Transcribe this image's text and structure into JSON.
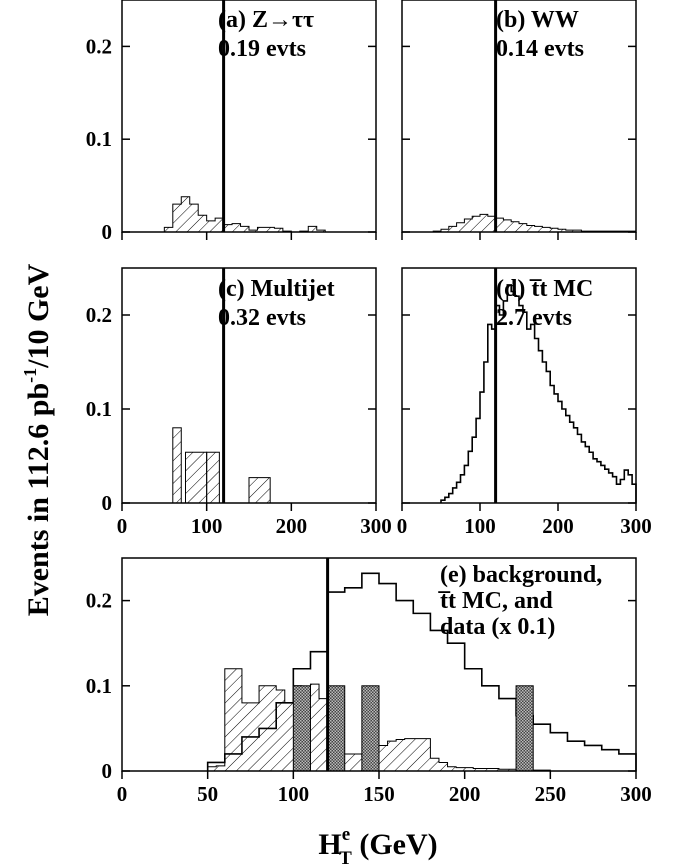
{
  "figure": {
    "ylabel_main": "Events in 112.6 pb",
    "ylabel_exp": "-1",
    "ylabel_tail": "/10 GeV",
    "xlabel_main": "H",
    "xlabel_sup": "e",
    "xlabel_sub": "T",
    "xlabel_tail": " (GeV)",
    "colors": {
      "frame": "#000000",
      "hatch": "#000000",
      "data_fill": "#555555",
      "background": "#ffffff"
    }
  },
  "chart_data": [
    {
      "id": "a",
      "type": "histogram",
      "label_lines": [
        "(a) Z→ττ",
        "0.19 evts"
      ],
      "xlim": [
        0,
        300
      ],
      "ylim": [
        0,
        0.25
      ],
      "yticks": [
        "0",
        "0.1",
        "0.2"
      ],
      "xticks": [],
      "cut_line_x": 120,
      "series": [
        {
          "name": "Z→ττ",
          "style": "hatched",
          "edges": [
            40,
            50,
            60,
            70,
            80,
            90,
            100,
            110,
            120,
            130,
            140,
            150,
            160,
            170,
            180,
            190,
            200,
            210,
            220,
            230,
            240,
            250,
            260,
            270,
            280,
            290,
            300
          ],
          "values": [
            0,
            0.005,
            0.03,
            0.038,
            0.03,
            0.018,
            0.012,
            0.015,
            0.008,
            0.009,
            0.006,
            0.002,
            0.005,
            0.005,
            0.004,
            0.001,
            0,
            0.001,
            0.006,
            0.002,
            0,
            0,
            0,
            0,
            0,
            0
          ]
        }
      ]
    },
    {
      "id": "b",
      "type": "histogram",
      "label_lines": [
        "(b) WW",
        "0.14 evts"
      ],
      "xlim": [
        0,
        300
      ],
      "ylim": [
        0,
        0.25
      ],
      "yticks": [
        "0",
        "0.1",
        "0.2"
      ],
      "xticks": [],
      "cut_line_x": 120,
      "series": [
        {
          "name": "WW",
          "style": "hatched",
          "edges": [
            40,
            50,
            60,
            70,
            80,
            90,
            100,
            110,
            120,
            130,
            140,
            150,
            160,
            170,
            180,
            190,
            200,
            210,
            220,
            230,
            240,
            250,
            260,
            270,
            280,
            290,
            300
          ],
          "values": [
            0.001,
            0.003,
            0.006,
            0.01,
            0.014,
            0.017,
            0.019,
            0.017,
            0.015,
            0.013,
            0.011,
            0.009,
            0.007,
            0.006,
            0.005,
            0.004,
            0.003,
            0.002,
            0.002,
            0.001,
            0.001,
            0.001,
            0.001,
            0.001,
            0.001,
            0.001
          ]
        }
      ]
    },
    {
      "id": "c",
      "type": "histogram",
      "label_lines": [
        "(c) Multijet",
        "0.32 evts"
      ],
      "xlim": [
        0,
        300
      ],
      "ylim": [
        0,
        0.25
      ],
      "yticks": [
        "0",
        "0.1",
        "0.2"
      ],
      "xticks": [
        "0",
        "100",
        "200",
        "300"
      ],
      "cut_line_x": 120,
      "series": [
        {
          "name": "Multijet",
          "style": "hatched-bars",
          "bars": [
            {
              "x0": 60,
              "x1": 70,
              "value": 0.08
            },
            {
              "x0": 75,
              "x1": 100,
              "value": 0.054
            },
            {
              "x0": 100,
              "x1": 115,
              "value": 0.054
            },
            {
              "x0": 150,
              "x1": 175,
              "value": 0.027
            }
          ]
        }
      ]
    },
    {
      "id": "d",
      "type": "histogram",
      "label_lines": [
        "(d) t̅t MC",
        "2.7 evts"
      ],
      "xlim": [
        0,
        300
      ],
      "ylim": [
        0,
        0.25
      ],
      "yticks": [
        "0",
        "0.1",
        "0.2"
      ],
      "xticks": [
        "0",
        "100",
        "200",
        "300"
      ],
      "cut_line_x": 120,
      "series": [
        {
          "name": "t̅t MC",
          "style": "step",
          "edges": [
            50,
            55,
            60,
            65,
            70,
            75,
            80,
            85,
            90,
            95,
            100,
            105,
            110,
            115,
            120,
            125,
            130,
            135,
            140,
            145,
            150,
            155,
            160,
            165,
            170,
            175,
            180,
            185,
            190,
            195,
            200,
            205,
            210,
            215,
            220,
            225,
            230,
            235,
            240,
            245,
            250,
            255,
            260,
            265,
            270,
            275,
            280,
            285,
            290,
            295,
            300
          ],
          "values": [
            0.003,
            0.006,
            0.01,
            0.016,
            0.022,
            0.03,
            0.04,
            0.055,
            0.07,
            0.09,
            0.118,
            0.15,
            0.19,
            0.185,
            0.21,
            0.2,
            0.215,
            0.232,
            0.225,
            0.22,
            0.21,
            0.203,
            0.185,
            0.19,
            0.175,
            0.162,
            0.15,
            0.14,
            0.125,
            0.116,
            0.108,
            0.1,
            0.093,
            0.086,
            0.08,
            0.073,
            0.065,
            0.06,
            0.054,
            0.047,
            0.044,
            0.04,
            0.036,
            0.032,
            0.028,
            0.02,
            0.025,
            0.035,
            0.03,
            0.02
          ]
        }
      ]
    },
    {
      "id": "e",
      "type": "histogram",
      "label_lines": [
        "(e) background,",
        "t̅t MC, and",
        "data (x 0.1)"
      ],
      "xlim": [
        0,
        300
      ],
      "ylim": [
        0,
        0.25
      ],
      "yticks": [
        "0",
        "0.1",
        "0.2"
      ],
      "xticks": [
        "0",
        "50",
        "100",
        "150",
        "200",
        "250",
        "300"
      ],
      "cut_line_x": 120,
      "series": [
        {
          "name": "background",
          "style": "hatched",
          "edges": [
            50,
            55,
            60,
            65,
            70,
            75,
            80,
            85,
            90,
            95,
            100,
            105,
            110,
            115,
            120,
            125,
            130,
            135,
            140,
            145,
            150,
            155,
            160,
            165,
            170,
            175,
            180,
            185,
            190,
            195,
            200,
            205,
            210,
            215,
            220,
            225,
            230,
            235,
            240,
            245,
            250
          ],
          "values": [
            0.005,
            0.006,
            0.12,
            0.12,
            0.08,
            0.08,
            0.1,
            0.1,
            0.095,
            0.08,
            0.1,
            0.085,
            0.102,
            0.085,
            0.085,
            0.02,
            0.02,
            0.02,
            0.017,
            0.02,
            0.03,
            0.035,
            0.037,
            0.038,
            0.038,
            0.038,
            0.015,
            0.01,
            0.005,
            0.004,
            0.004,
            0.003,
            0.003,
            0.003,
            0.002,
            0.002,
            0.002,
            0.001,
            0.001,
            0.001
          ]
        },
        {
          "name": "t̅t MC",
          "style": "step",
          "edges": [
            50,
            60,
            70,
            80,
            90,
            100,
            110,
            120,
            130,
            140,
            150,
            160,
            170,
            180,
            190,
            200,
            210,
            220,
            230,
            240,
            250,
            260,
            270,
            280,
            290,
            300
          ],
          "values": [
            0.01,
            0.02,
            0.04,
            0.05,
            0.08,
            0.12,
            0.14,
            0.21,
            0.215,
            0.232,
            0.22,
            0.2,
            0.185,
            0.165,
            0.15,
            0.12,
            0.1,
            0.085,
            0.065,
            0.055,
            0.045,
            0.035,
            0.03,
            0.025,
            0.02
          ]
        },
        {
          "name": "data (x 0.1)",
          "style": "data-bars",
          "bars": [
            {
              "x0": 100,
              "x1": 110,
              "value": 0.1
            },
            {
              "x0": 120,
              "x1": 130,
              "value": 0.1
            },
            {
              "x0": 140,
              "x1": 150,
              "value": 0.1
            },
            {
              "x0": 230,
              "x1": 240,
              "value": 0.1
            }
          ]
        }
      ]
    }
  ]
}
